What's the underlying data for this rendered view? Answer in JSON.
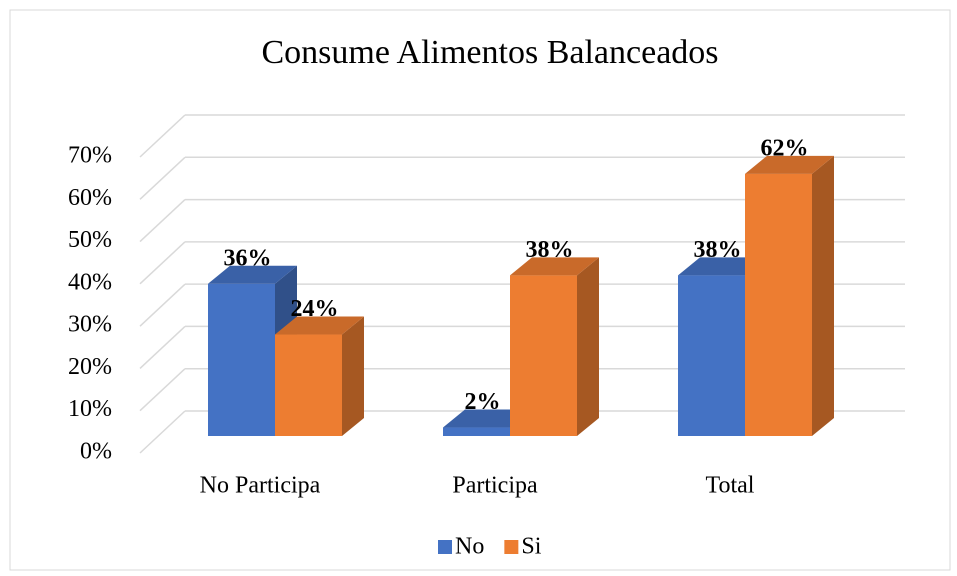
{
  "chart_data": {
    "type": "bar3d",
    "title": "Consume Alimentos Balanceados",
    "categories": [
      "No Participa",
      "Participa",
      "Total"
    ],
    "series": [
      {
        "name": "No",
        "color": "#4472c4",
        "values": [
          36,
          2,
          38
        ],
        "value_labels": [
          "36%",
          "2%",
          "38%"
        ]
      },
      {
        "name": "Si",
        "color": "#ed7d31",
        "values": [
          24,
          38,
          62
        ],
        "value_labels": [
          "24%",
          "38%",
          "62%"
        ]
      }
    ],
    "ylim": [
      0,
      70
    ],
    "yticks": [
      {
        "value": 0,
        "label": "0%"
      },
      {
        "value": 10,
        "label": "10%"
      },
      {
        "value": 20,
        "label": "20%"
      },
      {
        "value": 30,
        "label": "30%"
      },
      {
        "value": 40,
        "label": "40%"
      },
      {
        "value": 50,
        "label": "50%"
      },
      {
        "value": 60,
        "label": "60%"
      },
      {
        "value": 70,
        "label": "70%"
      }
    ],
    "grid": true,
    "legend": "bottom"
  }
}
